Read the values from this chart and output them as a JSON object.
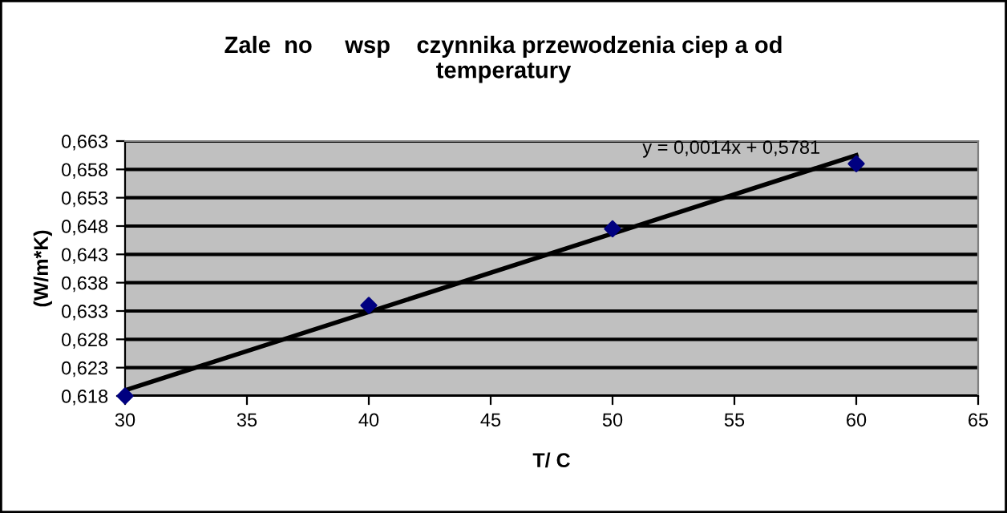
{
  "chart_data": {
    "type": "scatter",
    "title": "Zale  no     wsp    czynnika przewodzenia ciep a od\ntemperatury",
    "xlabel": "T/ C",
    "ylabel": "(W/m*K)",
    "series": [
      {
        "color": "#000080",
        "marker": "diamond",
        "x": [
          30,
          40,
          50,
          60
        ],
        "values": [
          0.618,
          0.634,
          0.6475,
          0.659
        ]
      },
      {
        "type": "line",
        "color": "#000000",
        "marker": "none",
        "x": [
          30,
          60
        ],
        "values": [
          0.619,
          0.6605
        ]
      }
    ],
    "annotations": [
      "y = 0,0014x + 0,5781"
    ],
    "xlim": [
      30,
      65
    ],
    "xticks": [
      30,
      35,
      40,
      45,
      50,
      55,
      60,
      65
    ],
    "ylim": [
      0.618,
      0.663
    ],
    "yticks": [
      {
        "value": 0.618,
        "label": "0,618"
      },
      {
        "value": 0.623,
        "label": "0,623"
      },
      {
        "value": 0.628,
        "label": "0,628"
      },
      {
        "value": 0.633,
        "label": "0,633"
      },
      {
        "value": 0.638,
        "label": "0,638"
      },
      {
        "value": 0.643,
        "label": "0,643"
      },
      {
        "value": 0.648,
        "label": "0,648"
      },
      {
        "value": 0.653,
        "label": "0,653"
      },
      {
        "value": 0.658,
        "label": "0,658"
      },
      {
        "value": 0.663,
        "label": "0,663"
      }
    ],
    "grid": "y",
    "legend": false
  }
}
